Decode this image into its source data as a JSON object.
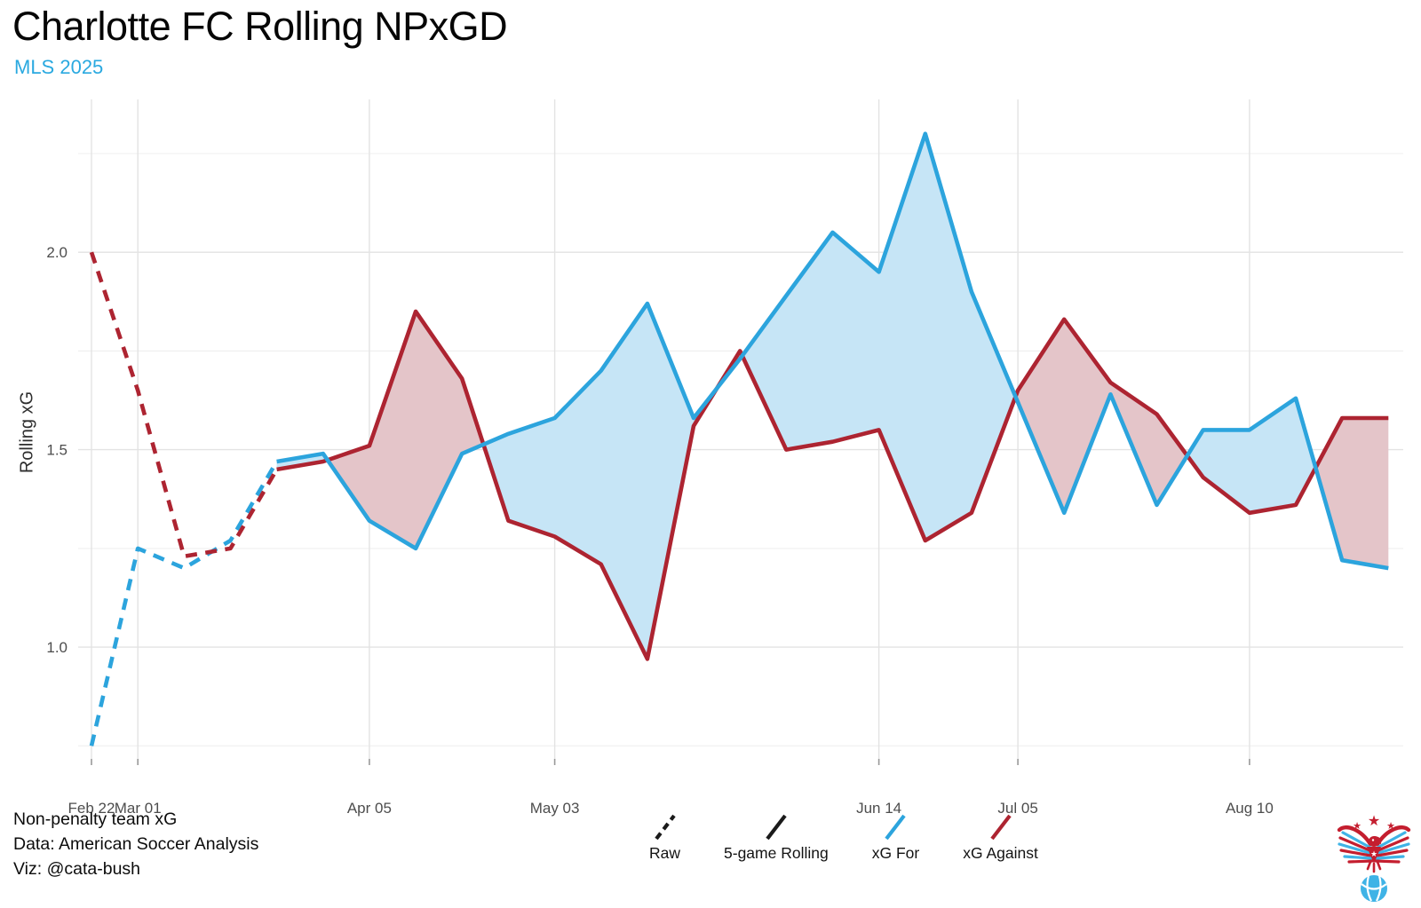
{
  "header": {
    "title": "Charlotte FC Rolling NPxGD",
    "subtitle": "MLS 2025"
  },
  "footer": {
    "lines": [
      "Non-penalty team xG",
      "Data: American Soccer Analysis",
      "Viz: @cata-bush"
    ]
  },
  "legend": {
    "items": [
      {
        "label": "Raw",
        "style": "dashed",
        "color_key": "black"
      },
      {
        "label": "5-game Rolling",
        "style": "solid",
        "color_key": "black"
      },
      {
        "label": "xG For",
        "style": "solid",
        "color_key": "blue"
      },
      {
        "label": "xG Against",
        "style": "solid",
        "color_key": "red"
      }
    ]
  },
  "colors": {
    "black": "#1a1a1a",
    "blue": "#2CA4DD",
    "red": "#AD2431",
    "blue_fill": "#C6E5F6",
    "red_fill": "#E4C5C9",
    "grid_major": "#E3E3E3",
    "grid_minor": "#EFEFEF",
    "axis_text": "#4D4D4D",
    "tick_mark": "#999999",
    "subtitle": "#2AA9E0",
    "logo_red": "#C41E2F",
    "logo_blue": "#3FB3E6"
  },
  "chart_data": {
    "type": "line",
    "title": "Charlotte FC Rolling NPxGD",
    "subtitle": "MLS 2025",
    "y_axis_title": "Rolling xG",
    "x_unit": "match number (1-29), labeled by match date",
    "grid": true,
    "legend_position": "bottom",
    "xlim": [
      0.712,
      29.32
    ],
    "ylim": [
      0.717,
      2.387
    ],
    "x_ticks": [
      {
        "game": 1,
        "label": "Feb 22"
      },
      {
        "game": 2,
        "label": "Mar 01"
      },
      {
        "game": 7,
        "label": "Apr 05"
      },
      {
        "game": 11,
        "label": "May 03"
      },
      {
        "game": 18,
        "label": "Jun 14"
      },
      {
        "game": 21,
        "label": "Jul 05"
      },
      {
        "game": 26,
        "label": "Aug 10"
      }
    ],
    "y_ticks": [
      {
        "value": 1.0,
        "label": "1.0"
      },
      {
        "value": 1.5,
        "label": "1.5"
      },
      {
        "value": 2.0,
        "label": "2.0"
      }
    ],
    "y_minor": [
      0.75,
      1.25,
      1.75,
      2.25
    ],
    "series": [
      {
        "name": "Raw xG For",
        "style": "dashed",
        "color_key": "blue",
        "start_game": 1,
        "values": [
          0.75,
          1.25,
          1.2,
          1.27,
          1.47
        ]
      },
      {
        "name": "Raw xG Against",
        "style": "dashed",
        "color_key": "red",
        "start_game": 1,
        "values": [
          2.0,
          1.65,
          1.23,
          1.25,
          1.45
        ]
      },
      {
        "name": "xG For (5-game rolling)",
        "style": "solid",
        "color_key": "blue",
        "start_game": 5,
        "values": [
          1.47,
          1.49,
          1.32,
          1.25,
          1.49,
          1.54,
          1.58,
          1.7,
          1.87,
          1.58,
          1.73,
          1.89,
          2.05,
          1.95,
          2.3,
          1.9,
          1.62,
          1.34,
          1.64,
          1.36,
          1.55,
          1.55,
          1.63,
          1.22,
          1.2
        ]
      },
      {
        "name": "xG Against (5-game rolling)",
        "style": "solid",
        "color_key": "red",
        "start_game": 5,
        "values": [
          1.45,
          1.47,
          1.51,
          1.85,
          1.68,
          1.32,
          1.28,
          1.21,
          0.97,
          1.56,
          1.75,
          1.5,
          1.52,
          1.55,
          1.27,
          1.34,
          1.65,
          1.83,
          1.67,
          1.59,
          1.43,
          1.34,
          1.36,
          1.58,
          1.58
        ]
      }
    ],
    "fill_between": {
      "for_above_color_key": "blue_fill",
      "against_above_color_key": "red_fill"
    }
  }
}
